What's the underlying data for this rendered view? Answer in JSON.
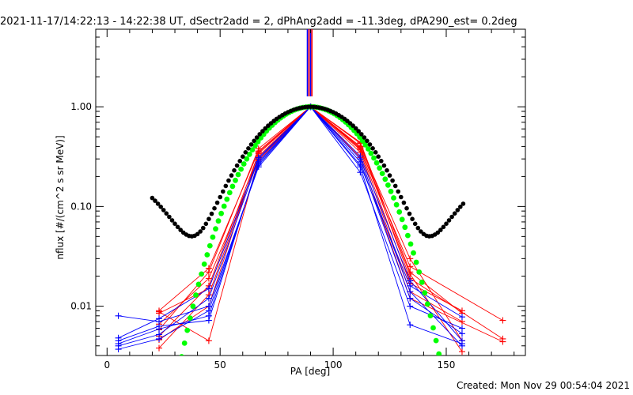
{
  "chart_data": {
    "type": "scatter",
    "title": "2021-11-17/14:22:13 - 14:22:38 UT, dSectr2add = 2, dPhAng2add = -11.3deg, dPA290_est=  0.2deg",
    "xlabel": "PA [deg]",
    "ylabel": "nflux [#/(cm^2 s sr MeV)]",
    "footer": "Created: Mon Nov 29 00:54:04 2021",
    "xlim": [
      -5,
      185
    ],
    "ylim": [
      0.0032,
      6.0
    ],
    "yscale": "log",
    "x_ticks": [
      0,
      50,
      100,
      150
    ],
    "x_tick_labels": [
      "0",
      "50",
      "100",
      "150"
    ],
    "y_ticks": [
      0.01,
      0.1,
      1.0
    ],
    "y_tick_labels": [
      "0.01",
      "0.10",
      "1.00"
    ],
    "grid": false,
    "colors": {
      "red": "#ff0000",
      "blue": "#0000ff",
      "green": "#00ff00",
      "black": "#000000"
    },
    "red_series": [
      [
        [
          23,
          0.0058
        ],
        [
          45,
          0.022
        ],
        [
          67,
          0.38
        ],
        [
          90,
          1.0
        ],
        [
          112,
          0.44
        ],
        [
          134,
          0.022
        ],
        [
          157,
          0.0085
        ]
      ],
      [
        [
          23,
          0.0088
        ],
        [
          45,
          0.0045
        ],
        [
          67,
          0.3
        ],
        [
          90,
          1.0
        ],
        [
          112,
          0.4
        ],
        [
          134,
          0.03
        ],
        [
          157,
          0.0045
        ]
      ],
      [
        [
          23,
          0.005
        ],
        [
          45,
          0.016
        ],
        [
          67,
          0.34
        ],
        [
          90,
          1.0
        ],
        [
          112,
          0.35
        ],
        [
          134,
          0.014
        ],
        [
          157,
          0.007
        ]
      ],
      [
        [
          23,
          0.009
        ],
        [
          45,
          0.024
        ],
        [
          67,
          0.36
        ],
        [
          90,
          1.0
        ],
        [
          112,
          0.38
        ],
        [
          134,
          0.025
        ],
        [
          175,
          0.0072
        ]
      ],
      [
        [
          23,
          0.0038
        ],
        [
          45,
          0.013
        ],
        [
          67,
          0.32
        ],
        [
          90,
          1.0
        ],
        [
          112,
          0.43
        ],
        [
          134,
          0.019
        ],
        [
          175,
          0.0047
        ]
      ],
      [
        [
          23,
          0.0066
        ],
        [
          45,
          0.019
        ],
        [
          67,
          0.29
        ],
        [
          90,
          1.0
        ],
        [
          112,
          0.37
        ],
        [
          134,
          0.017
        ],
        [
          157,
          0.009
        ]
      ],
      [
        [
          23,
          0.0046
        ],
        [
          45,
          0.01
        ],
        [
          67,
          0.35
        ],
        [
          90,
          1.0
        ],
        [
          112,
          0.31
        ],
        [
          134,
          0.012
        ],
        [
          175,
          0.0044
        ]
      ],
      [
        [
          23,
          0.0085
        ],
        [
          45,
          0.015
        ],
        [
          67,
          0.31
        ],
        [
          90,
          1.0
        ],
        [
          112,
          0.39
        ],
        [
          134,
          0.021
        ],
        [
          157,
          0.0035
        ]
      ]
    ],
    "blue_series": [
      [
        [
          5,
          0.008
        ],
        [
          23,
          0.007
        ],
        [
          45,
          0.01
        ],
        [
          67,
          0.25
        ],
        [
          90,
          1.0
        ],
        [
          112,
          0.25
        ],
        [
          134,
          0.0065
        ],
        [
          157,
          0.0042
        ]
      ],
      [
        [
          5,
          0.0045
        ],
        [
          23,
          0.0063
        ],
        [
          45,
          0.0072
        ],
        [
          67,
          0.28
        ],
        [
          90,
          1.0
        ],
        [
          112,
          0.22
        ],
        [
          134,
          0.01
        ],
        [
          157,
          0.006
        ]
      ],
      [
        [
          5,
          0.004
        ],
        [
          23,
          0.0052
        ],
        [
          45,
          0.012
        ],
        [
          67,
          0.3
        ],
        [
          90,
          1.0
        ],
        [
          112,
          0.3
        ],
        [
          134,
          0.014
        ],
        [
          157,
          0.004
        ]
      ],
      [
        [
          5,
          0.0037
        ],
        [
          23,
          0.0047
        ],
        [
          45,
          0.009
        ],
        [
          67,
          0.26
        ],
        [
          90,
          1.0
        ],
        [
          112,
          0.28
        ],
        [
          134,
          0.012
        ],
        [
          157,
          0.0053
        ]
      ],
      [
        [
          5,
          0.0048
        ],
        [
          23,
          0.0075
        ],
        [
          45,
          0.015
        ],
        [
          67,
          0.31
        ],
        [
          90,
          1.0
        ],
        [
          112,
          0.26
        ],
        [
          134,
          0.016
        ],
        [
          157,
          0.0078
        ]
      ],
      [
        [
          5,
          0.0042
        ],
        [
          23,
          0.0059
        ],
        [
          45,
          0.008
        ],
        [
          67,
          0.27
        ],
        [
          90,
          1.0
        ],
        [
          112,
          0.32
        ],
        [
          134,
          0.018
        ],
        [
          157,
          0.0045
        ]
      ]
    ],
    "spike_lines": [
      {
        "x": 88.6,
        "color": "#0000ff"
      },
      {
        "x": 89.3,
        "color": "#ff0000"
      },
      {
        "x": 90.0,
        "color": "#0000ff"
      },
      {
        "x": 90.6,
        "color": "#ff0000"
      }
    ],
    "black_curve": {
      "x_start": 20,
      "x_end": 158,
      "step": 1.25,
      "peak_x": 90,
      "peak_y": 1.0
    },
    "green_curve": {
      "x_start": 33,
      "x_end": 147,
      "step": 1.25,
      "peak_x": 90,
      "peak_y": 1.0
    }
  }
}
